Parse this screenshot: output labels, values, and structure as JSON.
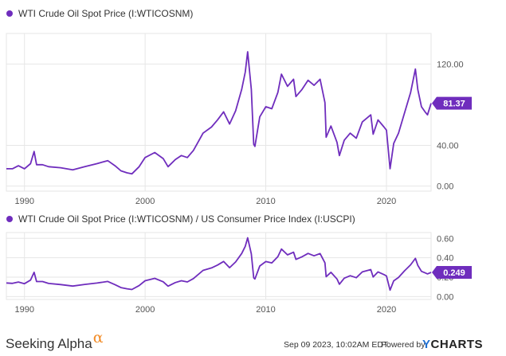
{
  "colors": {
    "series": "#6f2dbd",
    "grid": "#e6e6e6",
    "axis": "#555555",
    "badge_text": "#ffffff",
    "brand_alpha": "#f28c28",
    "ycharts_y": "#1f6fd1"
  },
  "chart_data": [
    {
      "type": "line",
      "legend": "WTI Crude Oil Spot Price (I:WTICOSNM)",
      "x_ticks": [
        1990,
        2000,
        2010,
        2020
      ],
      "y_ticks": [
        "0.00",
        "40.00",
        "120.00"
      ],
      "y_tick_values": [
        0,
        40,
        120
      ],
      "ylim": [
        -5,
        150
      ],
      "xlim": [
        1988.5,
        2023.7
      ],
      "last_value_label": "81.37",
      "grid": true,
      "series": [
        {
          "x": [
            1988.5,
            1989.0,
            1989.5,
            1990.0,
            1990.5,
            1990.8,
            1991.0,
            1991.5,
            1992.0,
            1993.0,
            1994.0,
            1995.0,
            1996.0,
            1996.9,
            1997.5,
            1998.0,
            1998.5,
            1998.9,
            1999.5,
            2000.0,
            2000.8,
            2001.5,
            2001.9,
            2002.5,
            2003.0,
            2003.5,
            2004.0,
            2004.8,
            2005.5,
            2006.0,
            2006.5,
            2007.0,
            2007.5,
            2008.0,
            2008.3,
            2008.5,
            2008.8,
            2009.0,
            2009.1,
            2009.5,
            2010.0,
            2010.5,
            2011.0,
            2011.3,
            2011.8,
            2012.3,
            2012.5,
            2013.0,
            2013.5,
            2014.0,
            2014.5,
            2014.9,
            2015.0,
            2015.4,
            2015.9,
            2016.1,
            2016.5,
            2017.0,
            2017.5,
            2018.0,
            2018.7,
            2018.9,
            2019.3,
            2019.8,
            2020.0,
            2020.3,
            2020.6,
            2021.0,
            2021.5,
            2022.0,
            2022.4,
            2022.6,
            2022.9,
            2023.2,
            2023.4,
            2023.7
          ],
          "y": [
            17,
            17,
            20,
            17,
            22,
            34,
            21,
            21,
            19,
            18,
            16,
            19,
            22,
            25,
            20,
            15,
            13,
            12,
            19,
            28,
            33,
            27,
            19,
            26,
            30,
            28,
            35,
            52,
            58,
            65,
            73,
            61,
            74,
            95,
            112,
            132,
            95,
            41,
            39,
            68,
            78,
            76,
            92,
            110,
            98,
            105,
            88,
            95,
            104,
            99,
            105,
            82,
            48,
            59,
            43,
            30,
            45,
            52,
            47,
            63,
            70,
            51,
            65,
            58,
            55,
            17,
            42,
            52,
            72,
            92,
            115,
            95,
            78,
            73,
            70,
            81.37
          ]
        }
      ]
    },
    {
      "type": "line",
      "legend": "WTI Crude Oil Spot Price (I:WTICOSNM) / US Consumer Price Index   (I:USCPI)",
      "x_ticks": [
        1990,
        2000,
        2010,
        2020
      ],
      "y_ticks": [
        "0.00",
        "0.20",
        "0.40",
        "0.60"
      ],
      "y_tick_values": [
        0,
        0.2,
        0.4,
        0.6
      ],
      "ylim": [
        -0.03,
        0.66
      ],
      "xlim": [
        1988.5,
        2023.7
      ],
      "last_value_label": "0.249",
      "grid": true,
      "series": [
        {
          "x": [
            1988.5,
            1989.0,
            1989.5,
            1990.0,
            1990.5,
            1990.8,
            1991.0,
            1991.5,
            1992.0,
            1993.0,
            1994.0,
            1995.0,
            1996.0,
            1996.9,
            1997.5,
            1998.0,
            1998.5,
            1998.9,
            1999.5,
            2000.0,
            2000.8,
            2001.5,
            2001.9,
            2002.5,
            2003.0,
            2003.5,
            2004.0,
            2004.8,
            2005.5,
            2006.0,
            2006.5,
            2007.0,
            2007.5,
            2008.0,
            2008.3,
            2008.5,
            2008.8,
            2009.0,
            2009.1,
            2009.5,
            2010.0,
            2010.5,
            2011.0,
            2011.3,
            2011.8,
            2012.3,
            2012.5,
            2013.0,
            2013.5,
            2014.0,
            2014.5,
            2014.9,
            2015.0,
            2015.4,
            2015.9,
            2016.1,
            2016.5,
            2017.0,
            2017.5,
            2018.0,
            2018.7,
            2018.9,
            2019.3,
            2019.8,
            2020.0,
            2020.3,
            2020.6,
            2021.0,
            2021.5,
            2022.0,
            2022.4,
            2022.6,
            2022.9,
            2023.2,
            2023.4,
            2023.7
          ],
          "y": [
            0.14,
            0.136,
            0.15,
            0.133,
            0.17,
            0.25,
            0.155,
            0.155,
            0.135,
            0.124,
            0.108,
            0.125,
            0.139,
            0.156,
            0.123,
            0.092,
            0.08,
            0.073,
            0.113,
            0.163,
            0.188,
            0.152,
            0.107,
            0.144,
            0.163,
            0.151,
            0.185,
            0.27,
            0.295,
            0.325,
            0.362,
            0.298,
            0.357,
            0.444,
            0.518,
            0.606,
            0.44,
            0.193,
            0.181,
            0.315,
            0.361,
            0.347,
            0.412,
            0.49,
            0.43,
            0.457,
            0.383,
            0.41,
            0.445,
            0.42,
            0.443,
            0.347,
            0.205,
            0.25,
            0.181,
            0.127,
            0.189,
            0.215,
            0.194,
            0.254,
            0.278,
            0.202,
            0.254,
            0.226,
            0.212,
            0.066,
            0.162,
            0.197,
            0.266,
            0.327,
            0.394,
            0.322,
            0.26,
            0.244,
            0.234,
            0.249
          ]
        }
      ]
    }
  ],
  "footer": {
    "brand": "Seeking Alpha",
    "brand_symbol": "α",
    "timestamp": "Sep 09 2023, 10:02AM EDT.",
    "powered_by": "Powered by",
    "ycharts_prefix": "Y",
    "ycharts_suffix": "CHARTS"
  }
}
